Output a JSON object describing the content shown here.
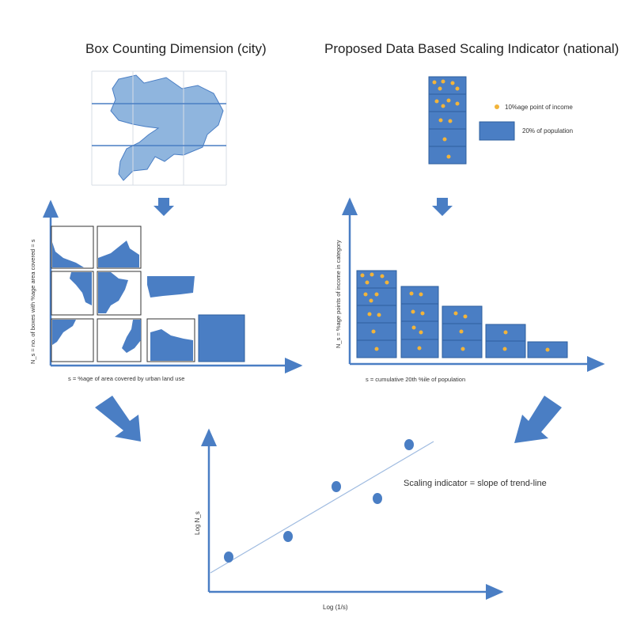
{
  "titles": {
    "left": "Box Counting Dimension (city)",
    "right": "Proposed Data Based Scaling Indicator (national)"
  },
  "legend": {
    "dot_label": "10%age point of income",
    "box_label": "20% of population"
  },
  "left_panel": {
    "ylabel": "N_s = no. of boxes with %age area covered = s",
    "xlabel": "s = %age of area covered by urban land use"
  },
  "right_panel": {
    "ylabel": "N_s = %age points of income in category",
    "xlabel": "s = cumulative 20th %ile of population",
    "stack_heights": [
      5,
      4,
      3,
      2,
      1
    ]
  },
  "bottom_panel": {
    "ylabel": "Log N_s",
    "xlabel": "Log (1/s)",
    "annotation": "Scaling indicator = slope of trend-line"
  },
  "colors": {
    "blue": "#4a7ec4",
    "blue_dark": "#2e5f9e",
    "map_fill": "#8fb5de",
    "dot": "#f2b43a",
    "grid": "#d7dde6"
  }
}
